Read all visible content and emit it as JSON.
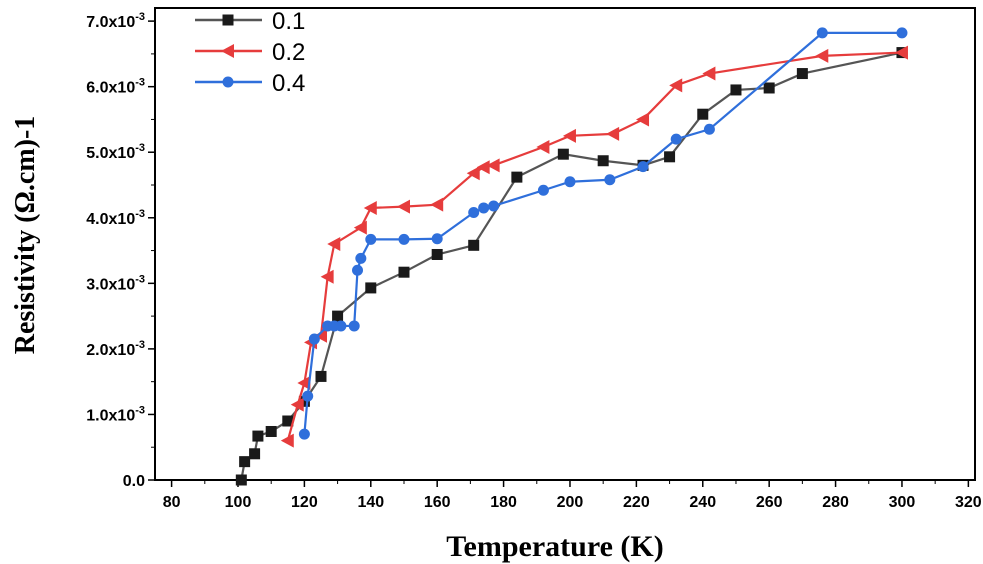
{
  "chart_data": {
    "type": "line",
    "xlabel": "Temperature (K)",
    "ylabel": "Resistivity (Ω.cm)",
    "ylabel_suffix": "-1",
    "xlim": [
      75,
      322
    ],
    "ylim": [
      0,
      7.2
    ],
    "x_ticks": [
      80,
      100,
      120,
      140,
      160,
      180,
      200,
      220,
      240,
      260,
      280,
      300,
      320
    ],
    "x_tick_labels": [
      "80",
      "100",
      "120",
      "140",
      "160",
      "180",
      "200",
      "220",
      "240",
      "260",
      "280",
      "300",
      "320"
    ],
    "y_ticks": [
      0,
      1,
      2,
      3,
      4,
      5,
      6,
      7
    ],
    "y_tick_labels": [
      {
        "base": "0.0",
        "exp": ""
      },
      {
        "base": "1.0x10",
        "exp": "-3"
      },
      {
        "base": "2.0x10",
        "exp": "-3"
      },
      {
        "base": "3.0x10",
        "exp": "-3"
      },
      {
        "base": "4.0x10",
        "exp": "-3"
      },
      {
        "base": "5.0x10",
        "exp": "-3"
      },
      {
        "base": "6.0x10",
        "exp": "-3"
      },
      {
        "base": "7.0x10",
        "exp": "-3"
      }
    ],
    "legend_position": "top-left",
    "series": [
      {
        "name": "0.1",
        "color": "#1a1a1a",
        "line_color": "#555555",
        "marker": "square",
        "x": [
          101,
          102,
          105,
          106,
          110,
          115,
          120,
          125,
          130,
          140,
          150,
          160,
          171,
          184,
          198,
          210,
          222,
          230,
          240,
          250,
          260,
          270,
          300
        ],
        "y": [
          0.0,
          0.28,
          0.4,
          0.67,
          0.74,
          0.9,
          1.2,
          1.58,
          2.5,
          2.93,
          3.17,
          3.44,
          3.58,
          4.62,
          4.97,
          4.87,
          4.8,
          4.93,
          5.58,
          5.95,
          5.98,
          6.2,
          6.52
        ]
      },
      {
        "name": "0.2",
        "color": "#e63c3c",
        "line_color": "#e63c3c",
        "marker": "triangle-left",
        "x": [
          115,
          118,
          120,
          122,
          125,
          127,
          129,
          137,
          140,
          150,
          160,
          171,
          174,
          177,
          192,
          200,
          213,
          222,
          232,
          242,
          276,
          300
        ],
        "y": [
          0.6,
          1.15,
          1.48,
          2.1,
          2.2,
          3.1,
          3.6,
          3.85,
          4.15,
          4.17,
          4.2,
          4.68,
          4.77,
          4.8,
          5.08,
          5.25,
          5.28,
          5.5,
          6.02,
          6.2,
          6.47,
          6.52
        ]
      },
      {
        "name": "0.4",
        "color": "#2f6fdb",
        "line_color": "#2f6fdb",
        "marker": "circle",
        "x": [
          120,
          121,
          123,
          127,
          129,
          131,
          135,
          136,
          137,
          140,
          150,
          160,
          171,
          174,
          177,
          192,
          200,
          212,
          222,
          232,
          242,
          276,
          300
        ],
        "y": [
          0.7,
          1.28,
          2.15,
          2.35,
          2.35,
          2.35,
          2.35,
          3.2,
          3.38,
          3.67,
          3.67,
          3.68,
          4.08,
          4.15,
          4.18,
          4.42,
          4.55,
          4.58,
          4.78,
          5.2,
          5.35,
          6.82,
          6.82
        ]
      }
    ]
  }
}
